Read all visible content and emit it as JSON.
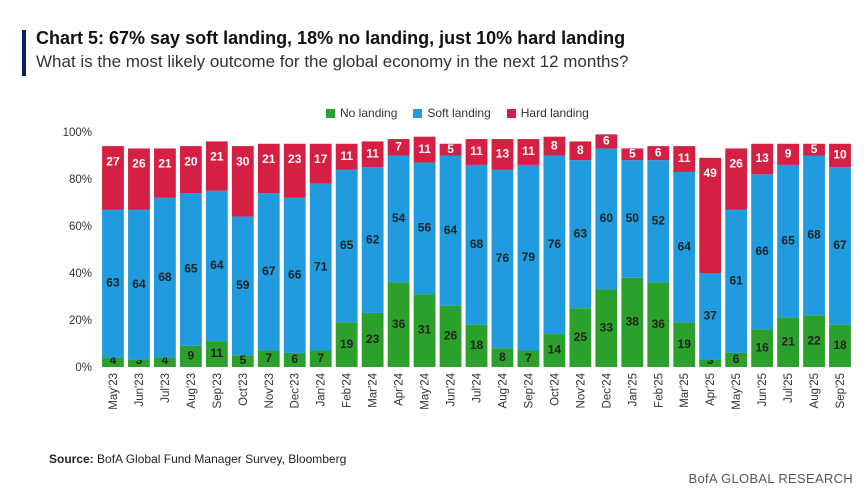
{
  "header": {
    "title": "Chart 5: 67% say soft landing, 18% no landing, just 10% hard landing",
    "subtitle": "What is the most likely outcome for the global economy in the next 12 months?"
  },
  "colors": {
    "no_landing": "#2ca02c",
    "soft_landing": "#1f9bde",
    "hard_landing": "#d62043",
    "accent": "#012169"
  },
  "legend": [
    {
      "label": "No landing",
      "color": "#2ca02c"
    },
    {
      "label": "Soft landing",
      "color": "#1f9bde"
    },
    {
      "label": "Hard landing",
      "color": "#d62043"
    }
  ],
  "chart_data": {
    "type": "bar",
    "stacked": true,
    "title": "Chart 5: 67% say soft landing, 18% no landing, just 10% hard landing",
    "subtitle": "What is the most likely outcome for the global economy in the next 12 months?",
    "categories": [
      "May'23",
      "Jun'23",
      "Jul'23",
      "Aug'23",
      "Sep'23",
      "Oct'23",
      "Nov'23",
      "Dec'23",
      "Jan'24",
      "Feb'24",
      "Mar'24",
      "Apr'24",
      "May'24",
      "Jun'24",
      "Jul'24",
      "Aug'24",
      "Sep'24",
      "Oct'24",
      "Nov'24",
      "Dec'24",
      "Jan'25",
      "Feb'25",
      "Mar'25",
      "Apr'25",
      "May'25",
      "Jun'25",
      "Jul'25",
      "Aug'25",
      "Sep'25"
    ],
    "series": [
      {
        "name": "No landing",
        "values": [
          4,
          3,
          4,
          9,
          11,
          5,
          7,
          6,
          7,
          19,
          23,
          36,
          31,
          26,
          18,
          8,
          7,
          14,
          25,
          33,
          38,
          36,
          19,
          3,
          6,
          16,
          21,
          22,
          18
        ]
      },
      {
        "name": "Soft landing",
        "values": [
          63,
          64,
          68,
          65,
          64,
          59,
          67,
          66,
          71,
          65,
          62,
          54,
          56,
          64,
          68,
          76,
          79,
          76,
          63,
          60,
          50,
          52,
          64,
          37,
          61,
          66,
          65,
          68,
          67
        ]
      },
      {
        "name": "Hard landing",
        "values": [
          27,
          26,
          21,
          20,
          21,
          30,
          21,
          23,
          17,
          11,
          11,
          7,
          11,
          5,
          11,
          13,
          11,
          8,
          8,
          6,
          5,
          6,
          11,
          49,
          26,
          13,
          9,
          5,
          10
        ]
      }
    ],
    "ylim": [
      0,
      100
    ],
    "yticks": [
      "0%",
      "20%",
      "40%",
      "60%",
      "80%",
      "100%"
    ],
    "xlabel": "",
    "ylabel": "",
    "legend_position": "top-center",
    "grid": false
  },
  "footer": {
    "source_label": "Source:",
    "source_text": "BofA Global Fund Manager Survey, Bloomberg",
    "brand": "BofA GLOBAL RESEARCH"
  }
}
